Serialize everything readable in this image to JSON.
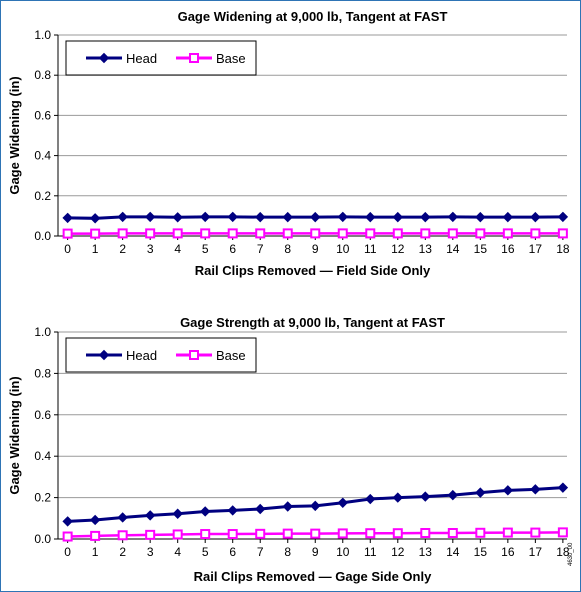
{
  "side_note": "4630_00",
  "chart_data": [
    {
      "type": "line",
      "title": "Gage Widening at 9,000 lb, Tangent at FAST",
      "xlabel": "Rail Clips Removed — Field Side Only",
      "ylabel": "Gage Widening (in)",
      "x": [
        0,
        1,
        2,
        3,
        4,
        5,
        6,
        7,
        8,
        9,
        10,
        11,
        12,
        13,
        14,
        15,
        16,
        17,
        18
      ],
      "ylim": [
        0,
        1.0
      ],
      "yticks": [
        "0.0",
        "0.2",
        "0.4",
        "0.6",
        "0.8",
        "1.0"
      ],
      "grid": true,
      "legend": "top-left",
      "series": [
        {
          "name": "Head",
          "color": "#000080",
          "marker": "diamond",
          "values": [
            0.09,
            0.088,
            0.095,
            0.095,
            0.093,
            0.095,
            0.095,
            0.094,
            0.094,
            0.094,
            0.095,
            0.094,
            0.094,
            0.094,
            0.095,
            0.094,
            0.094,
            0.094,
            0.095
          ]
        },
        {
          "name": "Base",
          "color": "#ff00ff",
          "marker": "square",
          "values": [
            0.012,
            0.012,
            0.013,
            0.013,
            0.013,
            0.013,
            0.013,
            0.013,
            0.013,
            0.013,
            0.013,
            0.013,
            0.013,
            0.013,
            0.013,
            0.013,
            0.013,
            0.013,
            0.013
          ]
        }
      ]
    },
    {
      "type": "line",
      "title": "Gage Strength at 9,000 lb, Tangent at FAST",
      "xlabel": "Rail Clips Removed — Gage Side Only",
      "ylabel": "Gage Widening (in)",
      "x": [
        0,
        1,
        2,
        3,
        4,
        5,
        6,
        7,
        8,
        9,
        10,
        11,
        12,
        13,
        14,
        15,
        16,
        17,
        18
      ],
      "ylim": [
        0,
        1.0
      ],
      "yticks": [
        "0.0",
        "0.2",
        "0.4",
        "0.6",
        "0.8",
        "1.0"
      ],
      "grid": true,
      "legend": "top-left",
      "series": [
        {
          "name": "Head",
          "color": "#000080",
          "marker": "diamond",
          "values": [
            0.085,
            0.092,
            0.104,
            0.114,
            0.122,
            0.133,
            0.138,
            0.145,
            0.157,
            0.16,
            0.175,
            0.193,
            0.2,
            0.205,
            0.212,
            0.224,
            0.235,
            0.24,
            0.248
          ]
        },
        {
          "name": "Base",
          "color": "#ff00ff",
          "marker": "square",
          "values": [
            0.012,
            0.015,
            0.018,
            0.02,
            0.022,
            0.024,
            0.024,
            0.025,
            0.026,
            0.026,
            0.027,
            0.028,
            0.028,
            0.029,
            0.029,
            0.03,
            0.031,
            0.031,
            0.032
          ]
        }
      ]
    }
  ]
}
